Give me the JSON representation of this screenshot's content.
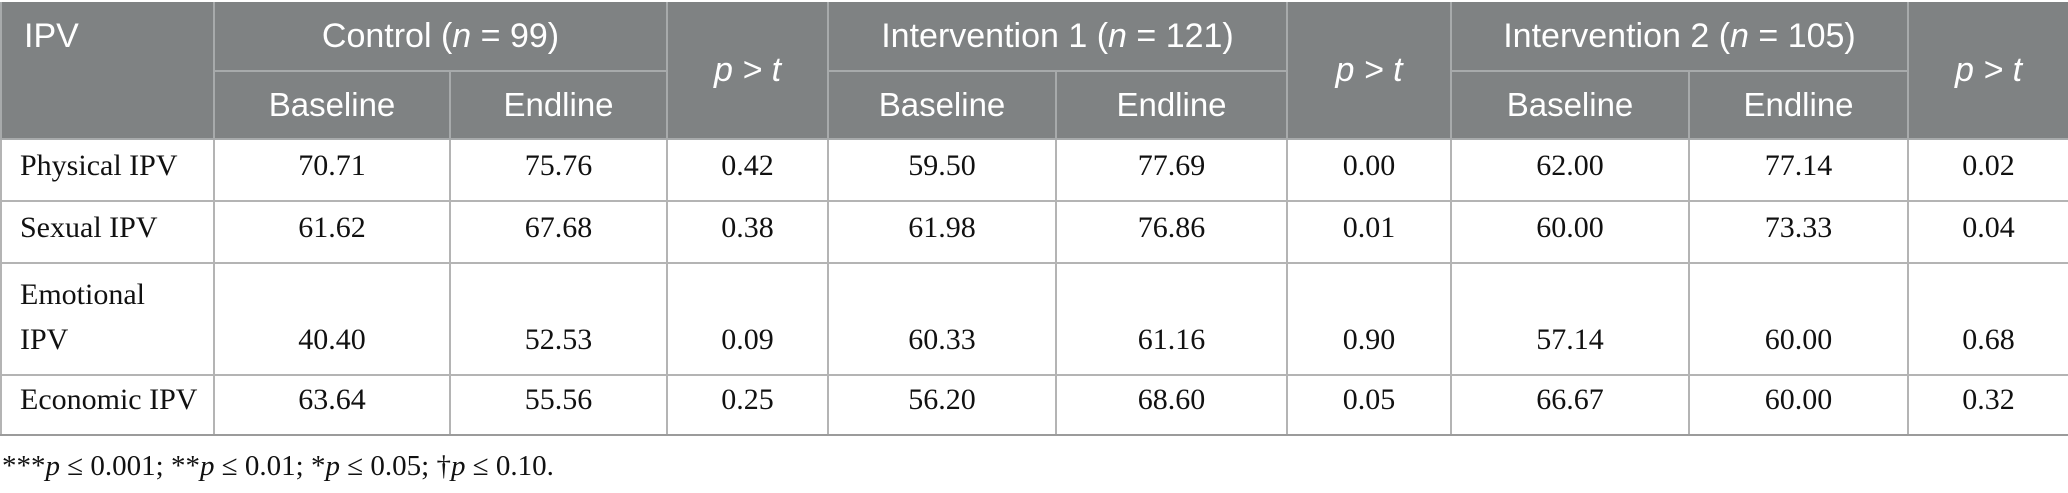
{
  "table": {
    "corner_label": "IPV",
    "p_col_label": "p > t",
    "sub_headers": [
      "Baseline",
      "Endline"
    ],
    "groups": [
      {
        "segments": [
          [
            "Control (",
            0
          ],
          [
            "n",
            1
          ],
          [
            " = 99)",
            0
          ]
        ]
      },
      {
        "segments": [
          [
            "Intervention 1 (",
            0
          ],
          [
            "n",
            1
          ],
          [
            " = 121)",
            0
          ]
        ]
      },
      {
        "segments": [
          [
            "Intervention 2 (",
            0
          ],
          [
            "n",
            1
          ],
          [
            " = 105)",
            0
          ]
        ]
      }
    ],
    "rows": [
      {
        "label": "Physical IPV",
        "values": [
          "70.71",
          "75.76",
          "0.42",
          "59.50",
          "77.69",
          "0.00",
          "62.00",
          "77.14",
          "0.02"
        ]
      },
      {
        "label": "Sexual IPV",
        "values": [
          "61.62",
          "67.68",
          "0.38",
          "61.98",
          "76.86",
          "0.01",
          "60.00",
          "73.33",
          "0.04"
        ]
      },
      {
        "label": "Emotional\nIPV",
        "values": [
          "40.40",
          "52.53",
          "0.09",
          "60.33",
          "61.16",
          "0.90",
          "57.14",
          "60.00",
          "0.68"
        ]
      },
      {
        "label": "Economic IPV",
        "values": [
          "63.64",
          "55.56",
          "0.25",
          "56.20",
          "68.60",
          "0.05",
          "66.67",
          "60.00",
          "0.32"
        ]
      }
    ],
    "footnote_segments": [
      [
        "***",
        0
      ],
      [
        "p",
        1
      ],
      [
        " ≤ 0.001; ",
        0
      ],
      [
        "**",
        0
      ],
      [
        "p",
        1
      ],
      [
        " ≤ 0.01; ",
        0
      ],
      [
        "*",
        0
      ],
      [
        "p",
        1
      ],
      [
        " ≤ 0.05; ",
        0
      ],
      [
        "†",
        0
      ],
      [
        "p",
        1
      ],
      [
        " ≤ 0.10.",
        0
      ]
    ]
  },
  "colors": {
    "header_bg": "#7f8283",
    "header_text": "#ffffff",
    "header_divider": "#a7aaab",
    "grid_line": "#b4b4b4",
    "text": "#111111"
  }
}
